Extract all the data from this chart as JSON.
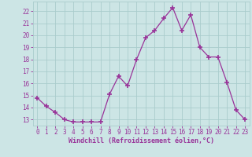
{
  "x": [
    0,
    1,
    2,
    3,
    4,
    5,
    6,
    7,
    8,
    9,
    10,
    11,
    12,
    13,
    14,
    15,
    16,
    17,
    18,
    19,
    20,
    21,
    22,
    23
  ],
  "y": [
    14.8,
    14.1,
    13.6,
    13.0,
    12.8,
    12.8,
    12.8,
    12.8,
    15.1,
    16.6,
    15.8,
    18.0,
    19.8,
    20.4,
    21.4,
    22.3,
    20.4,
    21.7,
    19.0,
    18.2,
    18.2,
    16.1,
    13.8,
    13.0
  ],
  "line_color": "#993399",
  "marker": "+",
  "marker_color": "#993399",
  "bg_color": "#cce5e5",
  "grid_color": "#aacccc",
  "xlabel": "Windchill (Refroidissement éolien,°C)",
  "xlabel_color": "#993399",
  "tick_color": "#993399",
  "ylim": [
    12.5,
    22.8
  ],
  "xlim": [
    -0.5,
    23.5
  ],
  "yticks": [
    13,
    14,
    15,
    16,
    17,
    18,
    19,
    20,
    21,
    22
  ],
  "xticks": [
    0,
    1,
    2,
    3,
    4,
    5,
    6,
    7,
    8,
    9,
    10,
    11,
    12,
    13,
    14,
    15,
    16,
    17,
    18,
    19,
    20,
    21,
    22,
    23
  ]
}
